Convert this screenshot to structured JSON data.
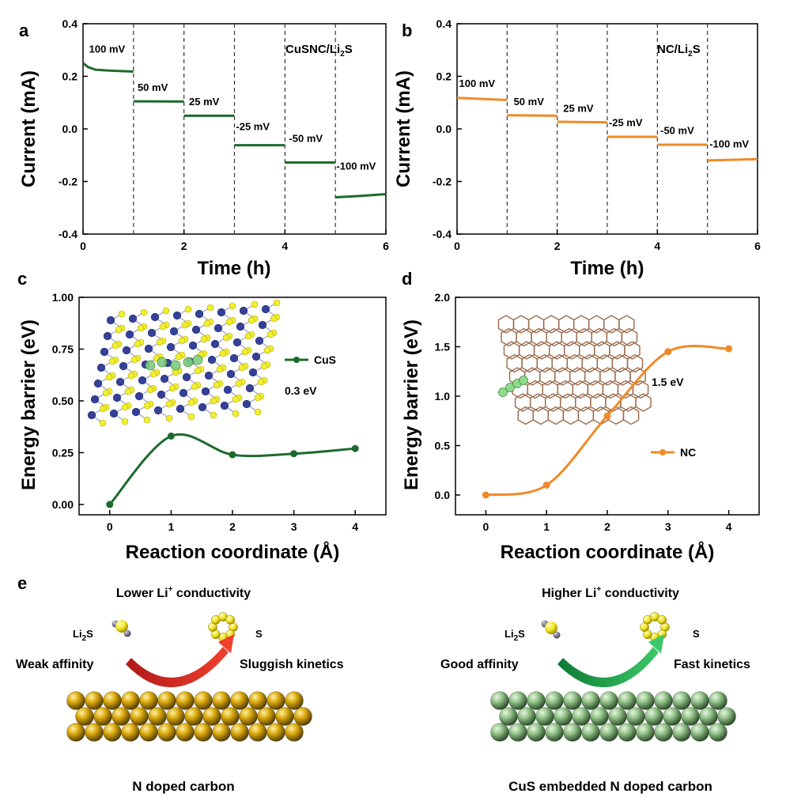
{
  "colors": {
    "cus": "#1c6b2e",
    "nc": "#f08a28",
    "red_arrow": "#d42a22",
    "green_arrow": "#1aa34a",
    "gold": "#d4a100",
    "sage": "#98c490",
    "yellow_atom": "#f0e020"
  },
  "panel_labels": [
    "a",
    "b",
    "c",
    "d",
    "e"
  ],
  "chart_data": [
    {
      "id": "a",
      "type": "line",
      "title": "CuSNC/Li2S",
      "title_main": "CuSNC/Li",
      "title_sub": "2",
      "title_tail": "S",
      "xlabel": "Time (h)",
      "ylabel": "Current (mA)",
      "xlim": [
        0,
        6
      ],
      "ylim": [
        -0.4,
        0.4
      ],
      "xticks": [
        "0",
        "2",
        "4",
        "6"
      ],
      "yticks": [
        "-0.4",
        "-0.2",
        "0.0",
        "0.2",
        "0.4"
      ],
      "ytick_values": [
        -0.4,
        -0.2,
        0.0,
        0.2,
        0.4
      ],
      "xtick_values": [
        0,
        2,
        4,
        6
      ],
      "dividers": [
        1,
        2,
        3,
        4,
        5
      ],
      "series_color": "#1c6b2e",
      "segments": [
        {
          "label": "100 mV",
          "x": [
            0,
            0.1,
            0.25,
            0.5,
            0.75,
            1.0
          ],
          "y": [
            0.25,
            0.235,
            0.225,
            0.222,
            0.22,
            0.218
          ]
        },
        {
          "label": "50 mV",
          "x": [
            1,
            2
          ],
          "y": [
            0.105,
            0.104
          ]
        },
        {
          "label": "25 mV",
          "x": [
            2,
            3
          ],
          "y": [
            0.05,
            0.05
          ]
        },
        {
          "label": "-25 mV",
          "x": [
            3,
            4
          ],
          "y": [
            -0.062,
            -0.062
          ]
        },
        {
          "label": "-50 mV",
          "x": [
            4,
            5
          ],
          "y": [
            -0.128,
            -0.128
          ]
        },
        {
          "label": "-100 mV",
          "x": [
            5,
            5.5,
            6
          ],
          "y": [
            -0.26,
            -0.255,
            -0.248
          ]
        }
      ]
    },
    {
      "id": "b",
      "type": "line",
      "title": "NC/Li2S",
      "title_main": "NC/Li",
      "title_sub": "2",
      "title_tail": "S",
      "xlabel": "Time (h)",
      "ylabel": "Current (mA)",
      "xlim": [
        0,
        6
      ],
      "ylim": [
        -0.4,
        0.4
      ],
      "xticks": [
        "0",
        "2",
        "4",
        "6"
      ],
      "yticks": [
        "-0.4",
        "-0.2",
        "0.0",
        "0.2",
        "0.4"
      ],
      "ytick_values": [
        -0.4,
        -0.2,
        0.0,
        0.2,
        0.4
      ],
      "xtick_values": [
        0,
        2,
        4,
        6
      ],
      "dividers": [
        1,
        2,
        3,
        4,
        5
      ],
      "series_color": "#f08a28",
      "segments": [
        {
          "label": "100 mV",
          "x": [
            0,
            1
          ],
          "y": [
            0.118,
            0.11
          ]
        },
        {
          "label": "50 mV",
          "x": [
            1,
            2
          ],
          "y": [
            0.052,
            0.05
          ]
        },
        {
          "label": "25 mV",
          "x": [
            2,
            3
          ],
          "y": [
            0.027,
            0.025
          ]
        },
        {
          "label": "-25 mV",
          "x": [
            3,
            4
          ],
          "y": [
            -0.03,
            -0.03
          ]
        },
        {
          "label": "-50 mV",
          "x": [
            4,
            5
          ],
          "y": [
            -0.06,
            -0.06
          ]
        },
        {
          "label": "-100 mV",
          "x": [
            5,
            6
          ],
          "y": [
            -0.12,
            -0.115
          ]
        }
      ]
    },
    {
      "id": "c",
      "type": "line",
      "xlabel": "Reaction coordinate (Å)",
      "ylabel": "Energy barrier (eV)",
      "xlim": [
        -0.5,
        4.5
      ],
      "ylim": [
        -0.05,
        1.0
      ],
      "xticks": [
        "0",
        "1",
        "2",
        "3",
        "4"
      ],
      "xtick_values": [
        0,
        1,
        2,
        3,
        4
      ],
      "yticks": [
        "0.00",
        "0.25",
        "0.50",
        "0.75",
        "1.00"
      ],
      "ytick_values": [
        0,
        0.25,
        0.5,
        0.75,
        1.0
      ],
      "series": [
        {
          "name": "CuS",
          "x": [
            0,
            1,
            2,
            3,
            4
          ],
          "y": [
            0.0,
            0.33,
            0.24,
            0.245,
            0.27
          ],
          "color": "#1c6b2e"
        }
      ],
      "annotation": "0.3 eV"
    },
    {
      "id": "d",
      "type": "line",
      "xlabel": "Reaction coordinate (Å)",
      "ylabel": "Energy barrier (eV)",
      "xlim": [
        -0.5,
        4.5
      ],
      "ylim": [
        -0.2,
        2.0
      ],
      "xticks": [
        "0",
        "1",
        "2",
        "3",
        "4"
      ],
      "xtick_values": [
        0,
        1,
        2,
        3,
        4
      ],
      "yticks": [
        "0.0",
        "0.5",
        "1.0",
        "1.5",
        "2.0"
      ],
      "ytick_values": [
        0,
        0.5,
        1.0,
        1.5,
        2.0
      ],
      "series": [
        {
          "name": "NC",
          "x": [
            0,
            1,
            2,
            3,
            4
          ],
          "y": [
            0.0,
            0.1,
            0.8,
            1.45,
            1.48
          ],
          "color": "#f08a28"
        }
      ],
      "annotation": "1.5 eV"
    }
  ],
  "schematic": {
    "left": {
      "title_pre": "Lower Li",
      "title_sup": "+",
      "title_post": " conductivity",
      "li2s_main": "Li",
      "li2s_sub": "2",
      "li2s_tail": "S",
      "s_label": "S",
      "affinity": "Weak affinity",
      "kinetics": "Sluggish kinetics",
      "caption": "N doped carbon"
    },
    "right": {
      "title_pre": "Higher Li",
      "title_sup": "+",
      "title_post": " conductivity",
      "li2s_main": "Li",
      "li2s_sub": "2",
      "li2s_tail": "S",
      "s_label": "S",
      "affinity": "Good affinity",
      "kinetics": "Fast kinetics",
      "caption": "CuS embedded N doped carbon"
    }
  }
}
